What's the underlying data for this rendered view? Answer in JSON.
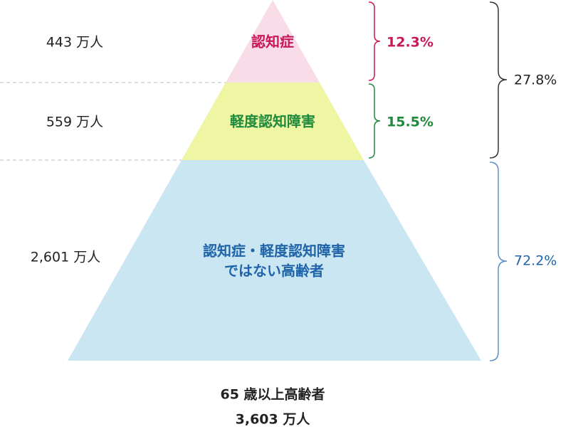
{
  "levels": [
    {
      "population": "443 万人",
      "label": [
        "認知症"
      ],
      "share": "12.3%"
    },
    {
      "population": "559 万人",
      "label": [
        "軽度認知障害"
      ],
      "share": "15.5%"
    },
    {
      "population": "2,601 万人",
      "label": [
        "認知症・軽度認知障害",
        "ではない高齢者"
      ],
      "share": "72.2%"
    }
  ],
  "group": {
    "share": "27.8%"
  },
  "total": {
    "label": "65 歳以上高齢者",
    "population": "3,603 万人"
  }
}
